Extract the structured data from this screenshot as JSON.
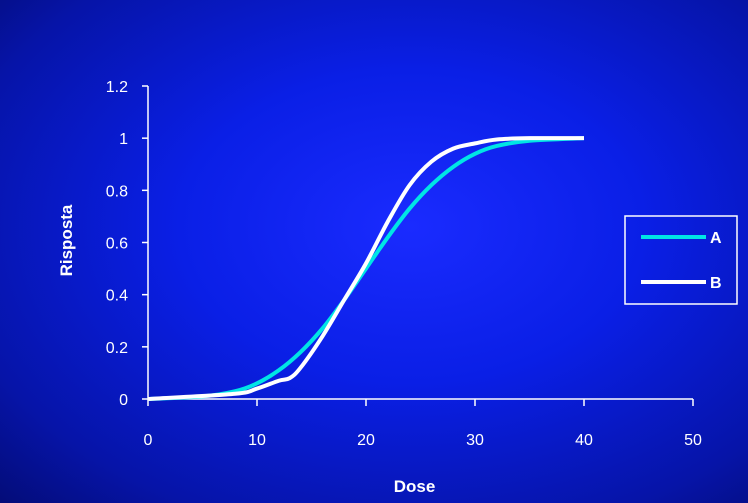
{
  "chart_data": {
    "type": "line",
    "xlabel": "Dose",
    "ylabel": "Risposta",
    "xlim": [
      0,
      50
    ],
    "ylim": [
      0,
      1.2
    ],
    "x_ticks": [
      "0",
      "10",
      "20",
      "30",
      "40",
      "50"
    ],
    "y_ticks": [
      "0",
      "0.2",
      "0.4",
      "0.6",
      "0.8",
      "1",
      "1.2"
    ],
    "grid": false,
    "legend_position": "right",
    "series": [
      {
        "name": "A",
        "color": "#00e5e5",
        "x": [
          0,
          5,
          8,
          10,
          12,
          14,
          16,
          18,
          20,
          22,
          24,
          26,
          28,
          30,
          32,
          35,
          40
        ],
        "y": [
          0.0,
          0.01,
          0.03,
          0.06,
          0.11,
          0.18,
          0.27,
          0.38,
          0.5,
          0.62,
          0.73,
          0.82,
          0.89,
          0.94,
          0.97,
          0.99,
          1.0
        ]
      },
      {
        "name": "B",
        "color": "#ffffff",
        "x": [
          0,
          8,
          10,
          12,
          13,
          14,
          16,
          18,
          20,
          22,
          24,
          26,
          28,
          30,
          32,
          35,
          40
        ],
        "y": [
          0.0,
          0.02,
          0.04,
          0.07,
          0.08,
          0.12,
          0.24,
          0.38,
          0.52,
          0.68,
          0.82,
          0.91,
          0.96,
          0.98,
          0.995,
          1.0,
          1.0
        ]
      }
    ]
  }
}
